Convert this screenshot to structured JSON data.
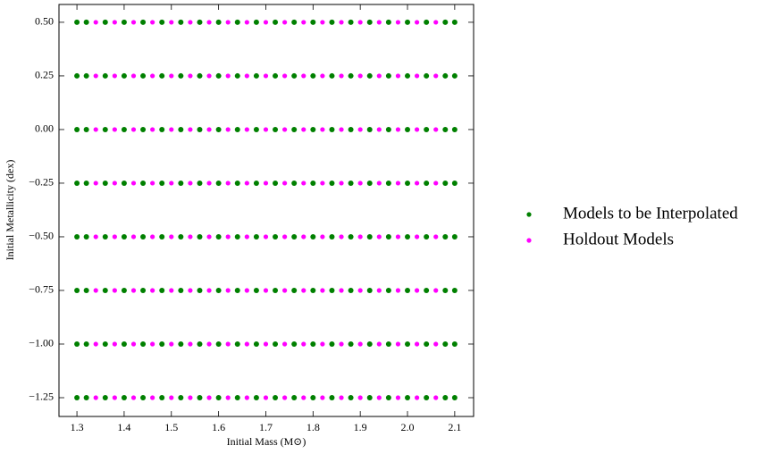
{
  "chart_data": {
    "type": "scatter",
    "xlabel": "Initial Mass (M⊙)",
    "ylabel": "Initial Metallicity (dex)",
    "xlim": [
      1.262,
      2.14
    ],
    "ylim": [
      -1.3375,
      0.583
    ],
    "xticks": [
      1.3,
      1.4,
      1.5,
      1.6,
      1.7,
      1.8,
      1.9,
      {
        "value": 2,
        "label": "2.0"
      },
      2.1
    ],
    "yticks": [
      {
        "value": 0.5,
        "label": "0.50"
      },
      {
        "value": 0.25,
        "label": "0.25"
      },
      {
        "value": 0,
        "label": "0.00"
      },
      {
        "value": -0.25,
        "label": "−0.25"
      },
      {
        "value": -0.5,
        "label": "−0.50"
      },
      {
        "value": -0.75,
        "label": "−0.75"
      },
      {
        "value": -1,
        "label": "−1.00"
      },
      {
        "value": -1.25,
        "label": "−1.25"
      }
    ],
    "series": [
      {
        "name": "Models to be Interpolated",
        "color": "#008000",
        "x": [
          1.3,
          1.32,
          1.36,
          1.4,
          1.44,
          1.48,
          1.52,
          1.56,
          1.6,
          1.64,
          1.68,
          1.72,
          1.76,
          1.8,
          1.84,
          1.88,
          1.92,
          1.96,
          2.0,
          2.04,
          2.08,
          2.1,
          1.3,
          1.32,
          1.36,
          1.4,
          1.44,
          1.48,
          1.52,
          1.56,
          1.6,
          1.64,
          1.68,
          1.72,
          1.76,
          1.8,
          1.84,
          1.88,
          1.92,
          1.96,
          2.0,
          2.04,
          2.08,
          2.1,
          1.3,
          1.32,
          1.36,
          1.4,
          1.44,
          1.48,
          1.52,
          1.56,
          1.6,
          1.64,
          1.68,
          1.72,
          1.76,
          1.8,
          1.84,
          1.88,
          1.92,
          1.96,
          2.0,
          2.04,
          2.08,
          2.1,
          1.3,
          1.32,
          1.36,
          1.4,
          1.44,
          1.48,
          1.52,
          1.56,
          1.6,
          1.64,
          1.68,
          1.72,
          1.76,
          1.8,
          1.84,
          1.88,
          1.92,
          1.96,
          2.0,
          2.04,
          2.08,
          2.1,
          1.3,
          1.32,
          1.36,
          1.4,
          1.44,
          1.48,
          1.52,
          1.56,
          1.6,
          1.64,
          1.68,
          1.72,
          1.76,
          1.8,
          1.84,
          1.88,
          1.92,
          1.96,
          2.0,
          2.04,
          2.08,
          2.1,
          1.3,
          1.32,
          1.36,
          1.4,
          1.44,
          1.48,
          1.52,
          1.56,
          1.6,
          1.64,
          1.68,
          1.72,
          1.76,
          1.8,
          1.84,
          1.88,
          1.92,
          1.96,
          2.0,
          2.04,
          2.08,
          2.1,
          1.3,
          1.32,
          1.36,
          1.4,
          1.44,
          1.48,
          1.52,
          1.56,
          1.6,
          1.64,
          1.68,
          1.72,
          1.76,
          1.8,
          1.84,
          1.88,
          1.92,
          1.96,
          2.0,
          2.04,
          2.08,
          2.1,
          1.3,
          1.32,
          1.36,
          1.4,
          1.44,
          1.48,
          1.52,
          1.56,
          1.6,
          1.64,
          1.68,
          1.72,
          1.76,
          1.8,
          1.84,
          1.88,
          1.92,
          1.96,
          2.0,
          2.04,
          2.08,
          2.1
        ],
        "y": [
          0.5,
          0.5,
          0.5,
          0.5,
          0.5,
          0.5,
          0.5,
          0.5,
          0.5,
          0.5,
          0.5,
          0.5,
          0.5,
          0.5,
          0.5,
          0.5,
          0.5,
          0.5,
          0.5,
          0.5,
          0.5,
          0.5,
          0.25,
          0.25,
          0.25,
          0.25,
          0.25,
          0.25,
          0.25,
          0.25,
          0.25,
          0.25,
          0.25,
          0.25,
          0.25,
          0.25,
          0.25,
          0.25,
          0.25,
          0.25,
          0.25,
          0.25,
          0.25,
          0.25,
          0,
          0,
          0,
          0,
          0,
          0,
          0,
          0,
          0,
          0,
          0,
          0,
          0,
          0,
          0,
          0,
          0,
          0,
          0,
          0,
          0,
          0,
          -0.25,
          -0.25,
          -0.25,
          -0.25,
          -0.25,
          -0.25,
          -0.25,
          -0.25,
          -0.25,
          -0.25,
          -0.25,
          -0.25,
          -0.25,
          -0.25,
          -0.25,
          -0.25,
          -0.25,
          -0.25,
          -0.25,
          -0.25,
          -0.25,
          -0.25,
          -0.5,
          -0.5,
          -0.5,
          -0.5,
          -0.5,
          -0.5,
          -0.5,
          -0.5,
          -0.5,
          -0.5,
          -0.5,
          -0.5,
          -0.5,
          -0.5,
          -0.5,
          -0.5,
          -0.5,
          -0.5,
          -0.5,
          -0.5,
          -0.5,
          -0.5,
          -0.75,
          -0.75,
          -0.75,
          -0.75,
          -0.75,
          -0.75,
          -0.75,
          -0.75,
          -0.75,
          -0.75,
          -0.75,
          -0.75,
          -0.75,
          -0.75,
          -0.75,
          -0.75,
          -0.75,
          -0.75,
          -0.75,
          -0.75,
          -0.75,
          -0.75,
          -1,
          -1,
          -1,
          -1,
          -1,
          -1,
          -1,
          -1,
          -1,
          -1,
          -1,
          -1,
          -1,
          -1,
          -1,
          -1,
          -1,
          -1,
          -1,
          -1,
          -1,
          -1,
          -1.25,
          -1.25,
          -1.25,
          -1.25,
          -1.25,
          -1.25,
          -1.25,
          -1.25,
          -1.25,
          -1.25,
          -1.25,
          -1.25,
          -1.25,
          -1.25,
          -1.25,
          -1.25,
          -1.25,
          -1.25,
          -1.25,
          -1.25,
          -1.25,
          -1.25
        ]
      },
      {
        "name": "Holdout Models",
        "color": "#ff00ff",
        "x": [
          1.34,
          1.38,
          1.42,
          1.46,
          1.5,
          1.54,
          1.58,
          1.62,
          1.66,
          1.7,
          1.74,
          1.78,
          1.82,
          1.86,
          1.9,
          1.94,
          1.98,
          2.02,
          2.06,
          1.34,
          1.38,
          1.42,
          1.46,
          1.5,
          1.54,
          1.58,
          1.62,
          1.66,
          1.7,
          1.74,
          1.78,
          1.82,
          1.86,
          1.9,
          1.94,
          1.98,
          2.02,
          2.06,
          1.34,
          1.38,
          1.42,
          1.46,
          1.5,
          1.54,
          1.58,
          1.62,
          1.66,
          1.7,
          1.74,
          1.78,
          1.82,
          1.86,
          1.9,
          1.94,
          1.98,
          2.02,
          2.06,
          1.34,
          1.38,
          1.42,
          1.46,
          1.5,
          1.54,
          1.58,
          1.62,
          1.66,
          1.7,
          1.74,
          1.78,
          1.82,
          1.86,
          1.9,
          1.94,
          1.98,
          2.02,
          2.06,
          1.34,
          1.38,
          1.42,
          1.46,
          1.5,
          1.54,
          1.58,
          1.62,
          1.66,
          1.7,
          1.74,
          1.78,
          1.82,
          1.86,
          1.9,
          1.94,
          1.98,
          2.02,
          2.06,
          1.34,
          1.38,
          1.42,
          1.46,
          1.5,
          1.54,
          1.58,
          1.62,
          1.66,
          1.7,
          1.74,
          1.78,
          1.82,
          1.86,
          1.9,
          1.94,
          1.98,
          2.02,
          2.06,
          1.34,
          1.38,
          1.42,
          1.46,
          1.5,
          1.54,
          1.58,
          1.62,
          1.66,
          1.7,
          1.74,
          1.78,
          1.82,
          1.86,
          1.9,
          1.94,
          1.98,
          2.02,
          2.06,
          1.34,
          1.38,
          1.42,
          1.46,
          1.5,
          1.54,
          1.58,
          1.62,
          1.66,
          1.7,
          1.74,
          1.78,
          1.82,
          1.86,
          1.9,
          1.94,
          1.98,
          2.02,
          2.06
        ],
        "y": [
          0.5,
          0.5,
          0.5,
          0.5,
          0.5,
          0.5,
          0.5,
          0.5,
          0.5,
          0.5,
          0.5,
          0.5,
          0.5,
          0.5,
          0.5,
          0.5,
          0.5,
          0.5,
          0.5,
          0.25,
          0.25,
          0.25,
          0.25,
          0.25,
          0.25,
          0.25,
          0.25,
          0.25,
          0.25,
          0.25,
          0.25,
          0.25,
          0.25,
          0.25,
          0.25,
          0.25,
          0.25,
          0.25,
          0,
          0,
          0,
          0,
          0,
          0,
          0,
          0,
          0,
          0,
          0,
          0,
          0,
          0,
          0,
          0,
          0,
          0,
          0,
          -0.25,
          -0.25,
          -0.25,
          -0.25,
          -0.25,
          -0.25,
          -0.25,
          -0.25,
          -0.25,
          -0.25,
          -0.25,
          -0.25,
          -0.25,
          -0.25,
          -0.25,
          -0.25,
          -0.25,
          -0.25,
          -0.25,
          -0.5,
          -0.5,
          -0.5,
          -0.5,
          -0.5,
          -0.5,
          -0.5,
          -0.5,
          -0.5,
          -0.5,
          -0.5,
          -0.5,
          -0.5,
          -0.5,
          -0.5,
          -0.5,
          -0.5,
          -0.5,
          -0.5,
          -0.75,
          -0.75,
          -0.75,
          -0.75,
          -0.75,
          -0.75,
          -0.75,
          -0.75,
          -0.75,
          -0.75,
          -0.75,
          -0.75,
          -0.75,
          -0.75,
          -0.75,
          -0.75,
          -0.75,
          -0.75,
          -0.75,
          -1,
          -1,
          -1,
          -1,
          -1,
          -1,
          -1,
          -1,
          -1,
          -1,
          -1,
          -1,
          -1,
          -1,
          -1,
          -1,
          -1,
          -1,
          -1,
          -1.25,
          -1.25,
          -1.25,
          -1.25,
          -1.25,
          -1.25,
          -1.25,
          -1.25,
          -1.25,
          -1.25,
          -1.25,
          -1.25,
          -1.25,
          -1.25,
          -1.25,
          -1.25,
          -1.25,
          -1.25,
          -1.25
        ]
      }
    ],
    "legend": "outside-right"
  }
}
